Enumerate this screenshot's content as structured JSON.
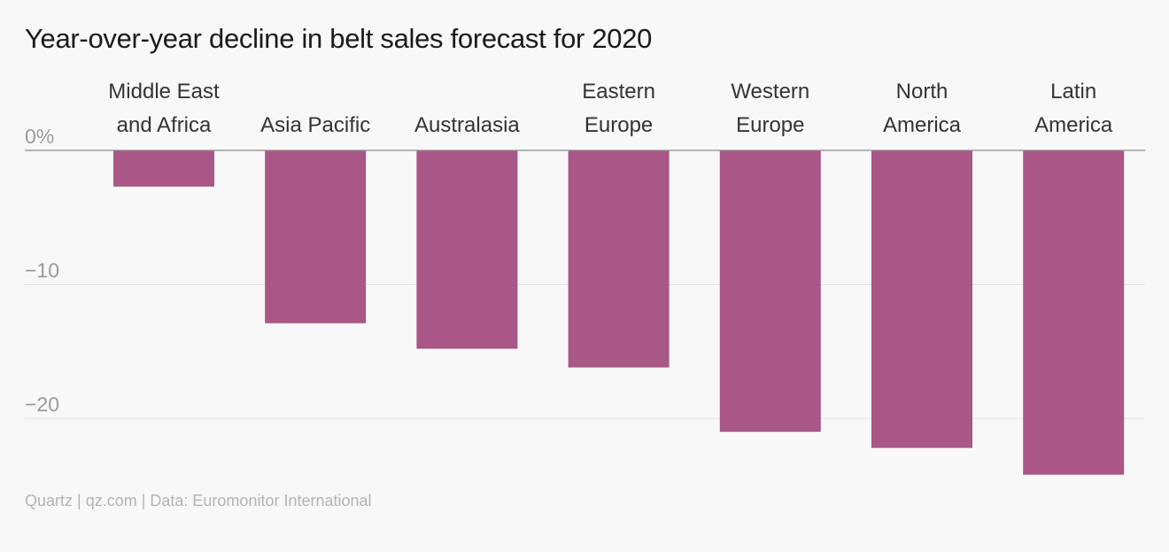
{
  "title": "Year-over-year decline in belt sales forecast for 2020",
  "source": "Quartz | qz.com | Data: Euromonitor International",
  "colors": {
    "bar": "#a85786",
    "grid": "#e2e2e2",
    "zero_line": "#8c8c8c",
    "background": "#f8f8f8"
  },
  "chart_data": {
    "type": "bar",
    "title": "Year-over-year decline in belt sales forecast for 2020",
    "xlabel": "",
    "ylabel": "",
    "categories": [
      [
        "Middle East",
        "and Africa"
      ],
      [
        "Asia Pacific"
      ],
      [
        "Australasia"
      ],
      [
        "Eastern",
        "Europe"
      ],
      [
        "Western",
        "Europe"
      ],
      [
        "North",
        "America"
      ],
      [
        "Latin",
        "America"
      ]
    ],
    "values": [
      -2.7,
      -12.9,
      -14.8,
      -16.2,
      -21.0,
      -22.2,
      -24.2
    ],
    "ylim": [
      -25,
      0
    ],
    "yticks": [
      {
        "value": 0,
        "label": "0%"
      },
      {
        "value": -10,
        "label": "−10"
      },
      {
        "value": -20,
        "label": "−20"
      }
    ],
    "category_axis_position": "top",
    "grid": true,
    "legend": "none"
  }
}
